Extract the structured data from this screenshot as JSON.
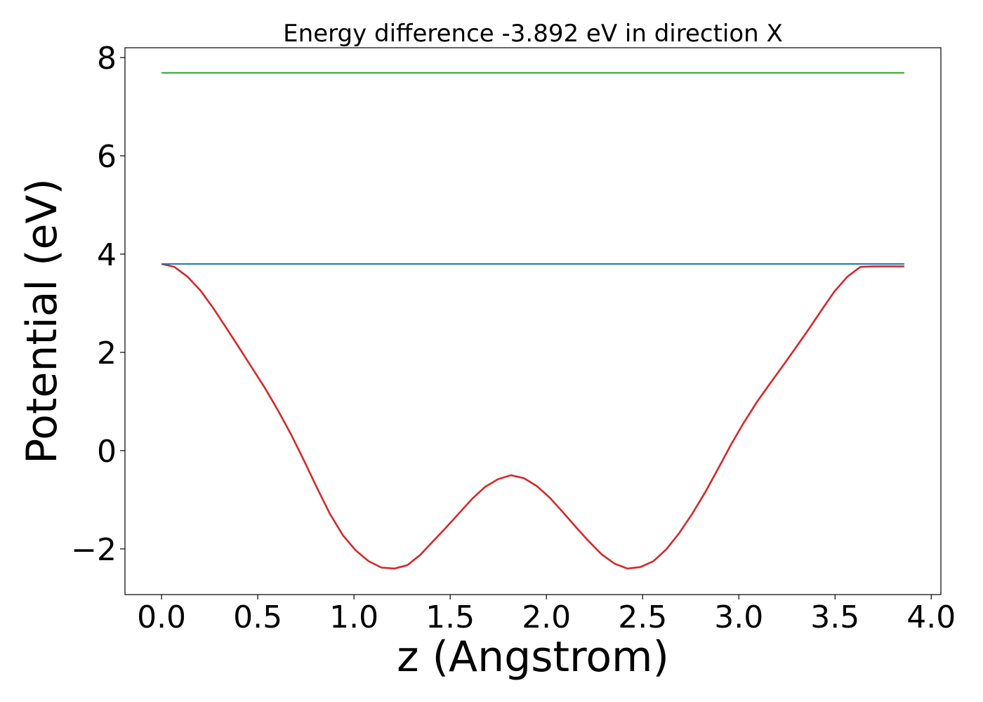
{
  "chart_data": {
    "type": "line",
    "title": "Energy difference -3.892 eV in direction X",
    "xlabel": "z (Angstrom)",
    "ylabel": "Potential (eV)",
    "xlim": [
      -0.19,
      4.05
    ],
    "ylim": [
      -2.93,
      8.2
    ],
    "xticks": [
      0.0,
      0.5,
      1.0,
      1.5,
      2.0,
      2.5,
      3.0,
      3.5,
      4.0
    ],
    "xtick_labels": [
      "0.0",
      "0.5",
      "1.0",
      "1.5",
      "2.0",
      "2.5",
      "3.0",
      "3.5",
      "4.0"
    ],
    "yticks": [
      -2,
      0,
      2,
      4,
      6,
      8
    ],
    "ytick_labels": [
      "−2",
      "0",
      "2",
      "4",
      "6",
      "8"
    ],
    "grid": false,
    "series": [
      {
        "color": "#d62728",
        "x": [
          0.0,
          0.067,
          0.135,
          0.202,
          0.269,
          0.336,
          0.404,
          0.471,
          0.538,
          0.605,
          0.673,
          0.74,
          0.807,
          0.874,
          0.942,
          1.009,
          1.076,
          1.143,
          1.211,
          1.278,
          1.345,
          1.412,
          1.48,
          1.547,
          1.614,
          1.681,
          1.749,
          1.816,
          1.883,
          1.95,
          2.018,
          2.085,
          2.152,
          2.219,
          2.287,
          2.354,
          2.421,
          2.488,
          2.556,
          2.623,
          2.69,
          2.757,
          2.825,
          2.892,
          2.959,
          3.026,
          3.094,
          3.161,
          3.228,
          3.295,
          3.363,
          3.43,
          3.497,
          3.564,
          3.632,
          3.699,
          3.766,
          3.833,
          3.86
        ],
        "values": [
          3.8,
          3.74,
          3.54,
          3.26,
          2.9,
          2.5,
          2.09,
          1.68,
          1.27,
          0.82,
          0.33,
          -0.2,
          -0.75,
          -1.28,
          -1.72,
          -2.03,
          -2.25,
          -2.38,
          -2.4,
          -2.33,
          -2.12,
          -1.84,
          -1.56,
          -1.27,
          -0.98,
          -0.74,
          -0.58,
          -0.5,
          -0.56,
          -0.72,
          -0.96,
          -1.25,
          -1.55,
          -1.84,
          -2.11,
          -2.3,
          -2.4,
          -2.37,
          -2.25,
          -2.01,
          -1.68,
          -1.29,
          -0.85,
          -0.37,
          0.12,
          0.57,
          0.99,
          1.36,
          1.72,
          2.09,
          2.47,
          2.86,
          3.24,
          3.54,
          3.74,
          3.75,
          3.75,
          3.75,
          3.75
        ]
      },
      {
        "color": "#1f77b4",
        "x": [
          0.0,
          3.86
        ],
        "values": [
          3.8,
          3.8
        ]
      },
      {
        "color": "#2ca02c",
        "x": [
          0.0,
          3.86
        ],
        "values": [
          7.69,
          7.69
        ]
      }
    ]
  }
}
